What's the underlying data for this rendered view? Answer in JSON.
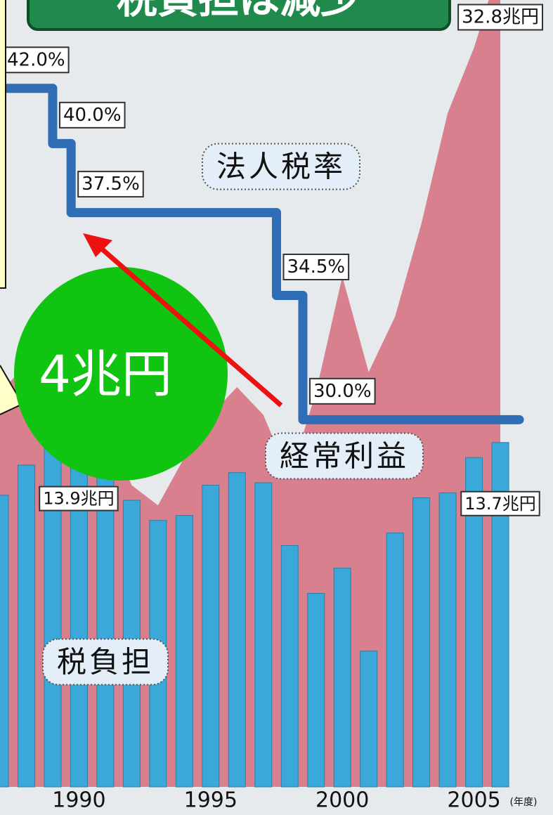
{
  "chart_data": {
    "type": "combo",
    "title": "税負担は減少",
    "xlabel": "(年度)",
    "xlim": [
      1987,
      2008
    ],
    "xticks": [
      1990,
      1995,
      2000,
      2005
    ],
    "ylim": [
      0,
      31.3
    ],
    "y2lim": [
      16.7,
      45.2
    ],
    "series": [
      {
        "name": "経常利益",
        "type": "area",
        "color": "#d9808f",
        "x": [
          1987,
          1988,
          1989,
          1990,
          1991,
          1992,
          1993,
          1994,
          1995,
          1996,
          1997,
          1998,
          1999,
          2000,
          2001,
          2002,
          2003,
          2004,
          2005,
          2006
        ],
        "values": [
          15.7,
          16.8,
          17.9,
          18.2,
          14.5,
          12.0,
          11.2,
          13.1,
          14.8,
          15.9,
          14.8,
          12.3,
          15.7,
          20.3,
          16.5,
          18.7,
          22.4,
          26.8,
          29.4,
          32.8
        ],
        "value_labels": [
          null,
          null,
          null,
          null,
          null,
          null,
          null,
          null,
          null,
          null,
          null,
          null,
          null,
          null,
          null,
          null,
          null,
          null,
          null,
          "32.8兆円"
        ]
      },
      {
        "name": "税負担",
        "type": "bar",
        "color": "#3aa8d8",
        "x": [
          1987,
          1988,
          1989,
          1990,
          1991,
          1992,
          1993,
          1994,
          1995,
          1996,
          1997,
          1998,
          1999,
          2000,
          2001,
          2002,
          2003,
          2004,
          2005,
          2006
        ],
        "values": [
          11.6,
          12.8,
          13.9,
          13.5,
          13.0,
          11.4,
          10.6,
          10.8,
          12.0,
          12.5,
          12.1,
          9.6,
          7.7,
          8.7,
          5.4,
          10.1,
          11.5,
          11.7,
          13.1,
          13.7
        ],
        "value_labels": [
          null,
          null,
          "13.9兆円",
          null,
          null,
          null,
          null,
          null,
          null,
          null,
          null,
          null,
          null,
          null,
          null,
          null,
          null,
          null,
          null,
          "13.7兆円"
        ]
      },
      {
        "name": "法人税率",
        "type": "step",
        "axis": "y2",
        "color": "#2f6db5",
        "x": [
          1986.5,
          1989,
          1989.7,
          1997.5,
          1998.5
        ],
        "values": [
          42.0,
          40.0,
          37.5,
          34.5,
          30.0
        ],
        "value_labels": [
          "42.0%",
          "40.0%",
          "37.5%",
          "34.5%",
          "30.0%"
        ]
      }
    ],
    "annotation": "4兆円"
  }
}
